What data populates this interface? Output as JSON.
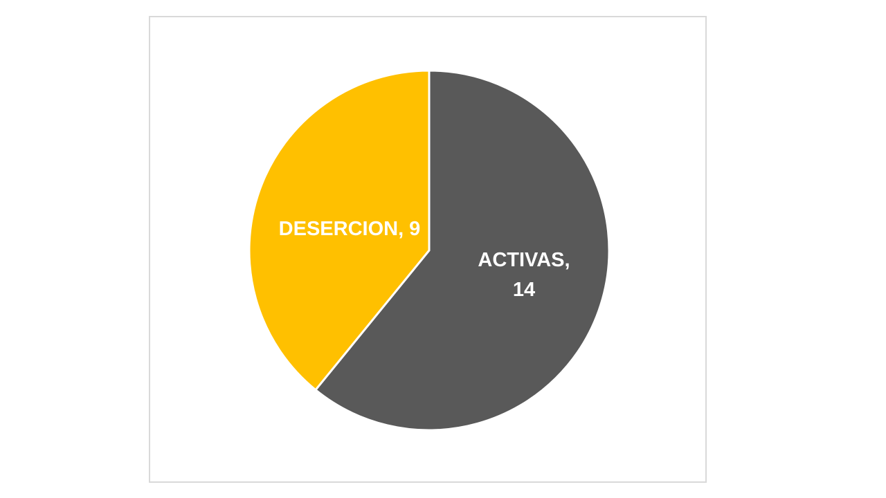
{
  "chart_data": {
    "type": "pie",
    "title": "",
    "series": [
      {
        "values": [
          {
            "label": "ACTIVAS",
            "value": 14,
            "display": "ACTIVAS,",
            "display_value": "14",
            "color": "#595959"
          },
          {
            "label": "DESERCION",
            "value": 9,
            "display": "DESERCION, 9",
            "display_value": "",
            "color": "#ffc000"
          }
        ]
      }
    ],
    "legend": "none",
    "slice_border_color": "#ffffff"
  }
}
